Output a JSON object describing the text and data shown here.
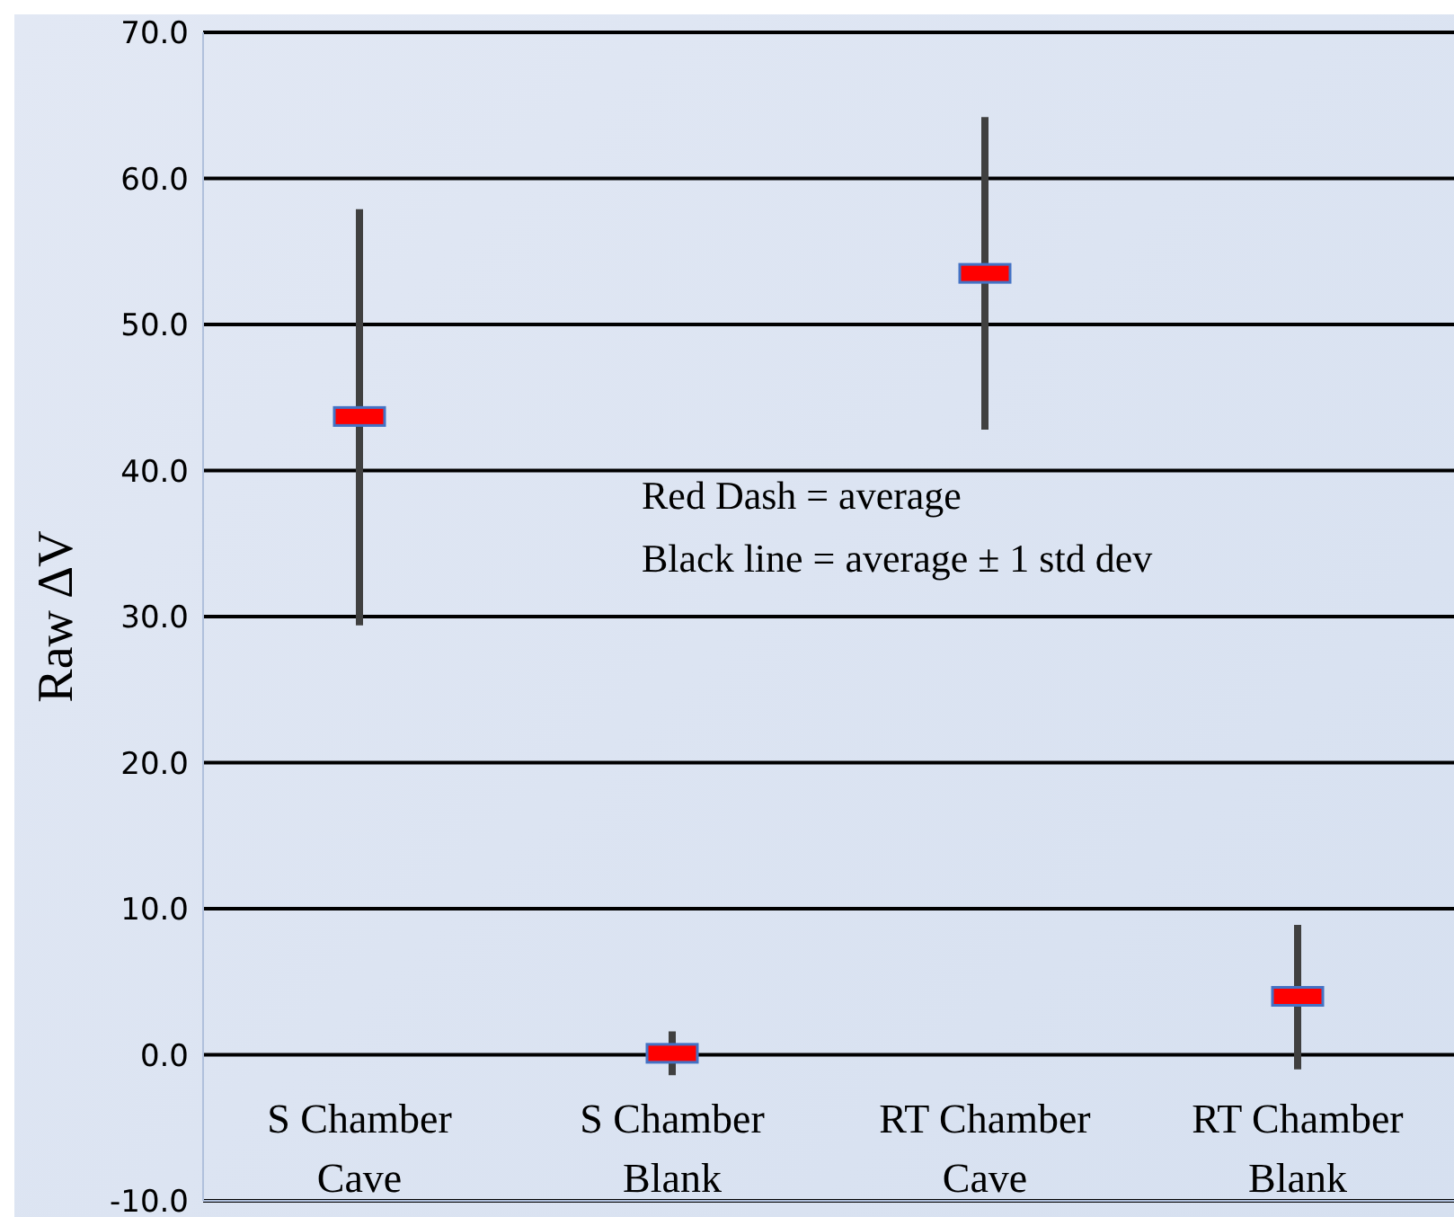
{
  "chart_data": {
    "type": "scatter",
    "ylabel": "Raw ∆V",
    "categories": [
      "S Chamber Cave",
      "S Chamber Blank",
      "RT Chamber Cave",
      "RT Chamber Blank"
    ],
    "series": [
      {
        "color": "#ff0000",
        "values": [
          43.7,
          0.1,
          53.5,
          4.0
        ],
        "errors": [
          [
            29.4,
            57.9
          ],
          [
            -1.4,
            1.6
          ],
          [
            42.8,
            64.2
          ],
          [
            -1.0,
            8.9
          ]
        ]
      }
    ],
    "ylim": [
      -10,
      70
    ],
    "yticks": [
      {
        "value": -10,
        "label": "-10.0"
      },
      {
        "value": 0,
        "label": "0.0"
      },
      {
        "value": 10,
        "label": "10.0"
      },
      {
        "value": 20,
        "label": "20.0"
      },
      {
        "value": 30,
        "label": "30.0"
      },
      {
        "value": 40,
        "label": "40.0"
      },
      {
        "value": 50,
        "label": "50.0"
      },
      {
        "value": 60,
        "label": "60.0"
      },
      {
        "value": 70,
        "label": "70.0"
      }
    ],
    "grid": "y",
    "annotations": [
      "Red Dash = average",
      "Black line = average ± 1 std dev"
    ]
  }
}
